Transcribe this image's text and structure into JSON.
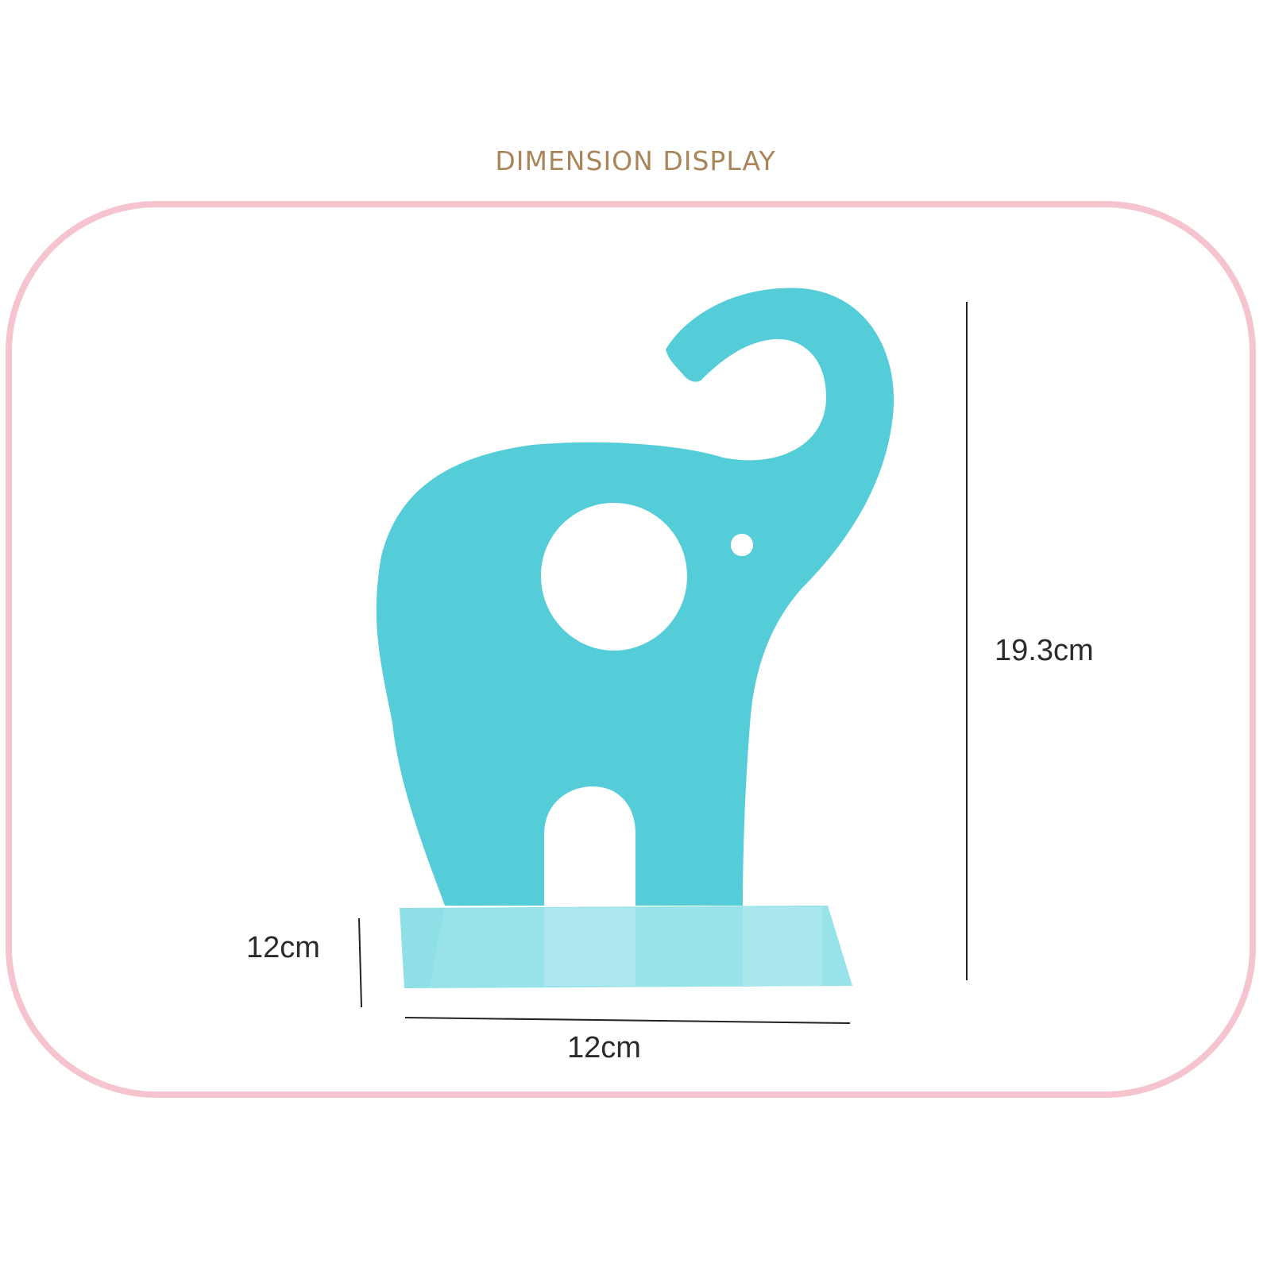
{
  "heading": "DIMENSION DISPLAY",
  "product": {
    "name": "elephant bookend",
    "color": "#55cdd8",
    "base_color": "#8edfe6"
  },
  "dimensions": {
    "height": "19.3cm",
    "depth": "12cm",
    "width": "12cm"
  },
  "colors": {
    "heading": "#a9865a",
    "frame": "#f6c4ce",
    "dimension_line": "#222222"
  }
}
